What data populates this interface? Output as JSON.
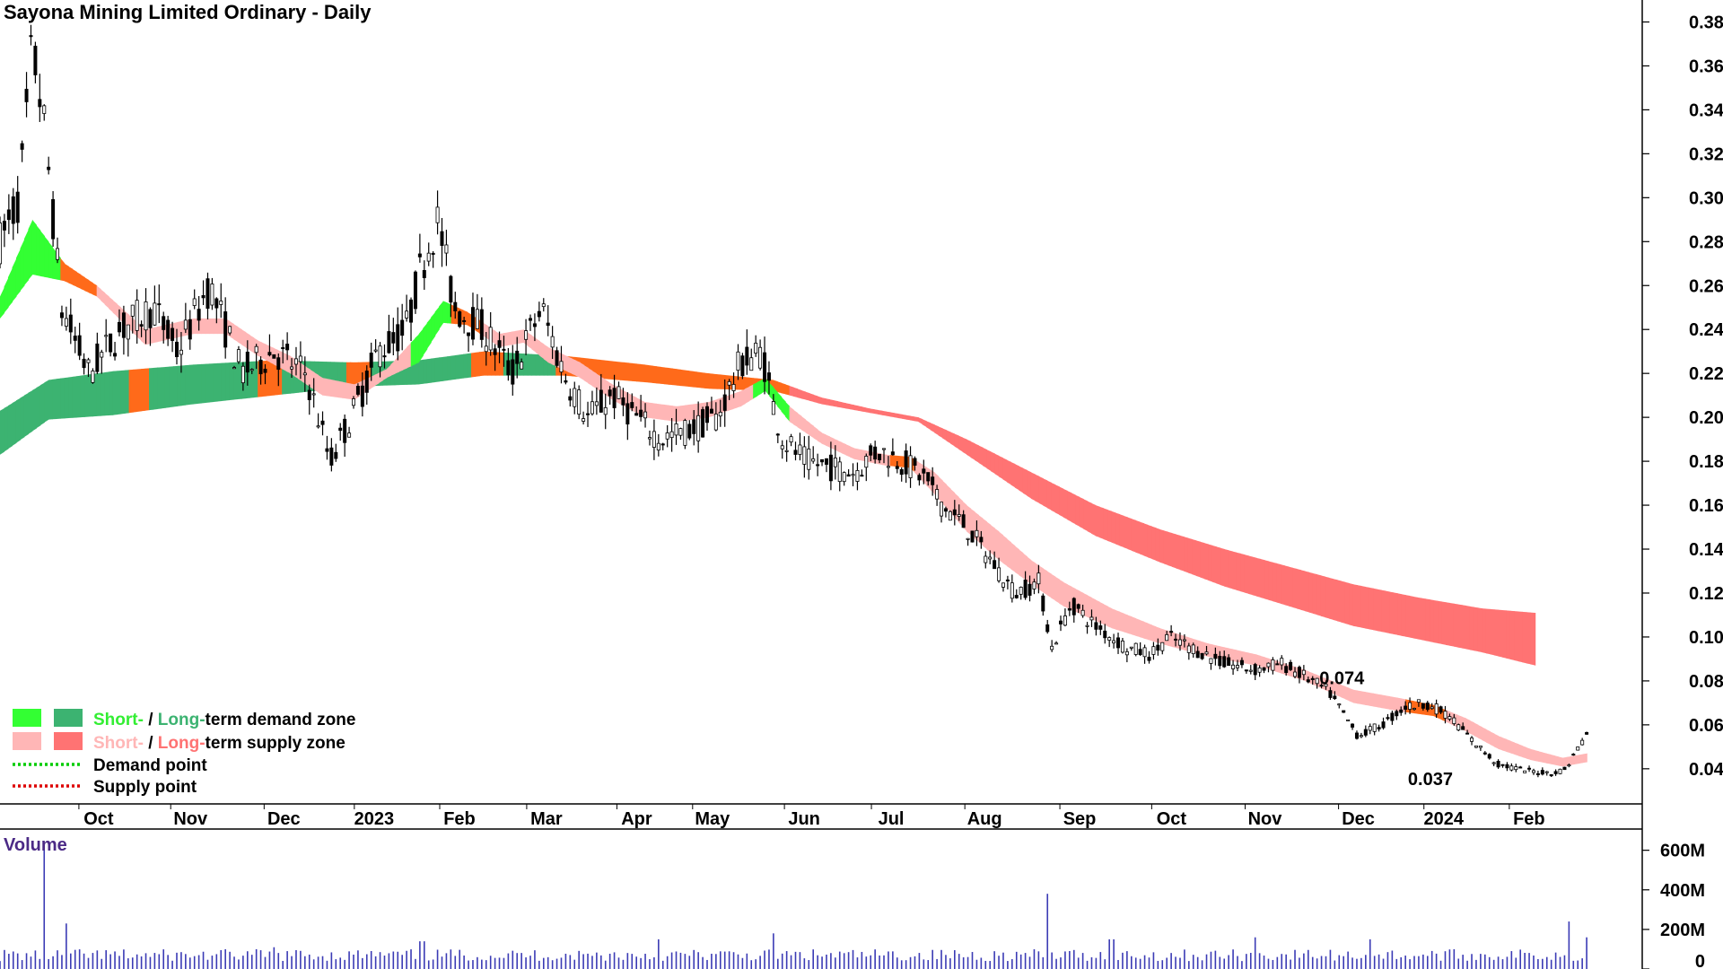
{
  "chart_data": {
    "type": "candlestick",
    "title": "Sayona Mining Limited Ordinary - Daily",
    "price_axis": {
      "ylim": [
        0.024,
        0.39
      ],
      "ticks": [
        "0.38",
        "0.36",
        "0.34",
        "0.32",
        "0.30",
        "0.28",
        "0.26",
        "0.24",
        "0.22",
        "0.20",
        "0.18",
        "0.16",
        "0.14",
        "0.12",
        "0.10",
        "0.08",
        "0.06",
        "0.04"
      ]
    },
    "x_labels": [
      {
        "label": "Oct",
        "t": 0.059
      },
      {
        "label": "Nov",
        "t": 0.116
      },
      {
        "label": "Dec",
        "t": 0.174
      },
      {
        "label": "2023",
        "t": 0.23
      },
      {
        "label": "Feb",
        "t": 0.283
      },
      {
        "label": "Mar",
        "t": 0.337
      },
      {
        "label": "Apr",
        "t": 0.393
      },
      {
        "label": "May",
        "t": 0.44
      },
      {
        "label": "Jun",
        "t": 0.497
      },
      {
        "label": "Jul",
        "t": 0.551
      },
      {
        "label": "Aug",
        "t": 0.609
      },
      {
        "label": "Sep",
        "t": 0.668
      },
      {
        "label": "Oct",
        "t": 0.725
      },
      {
        "label": "Nov",
        "t": 0.783
      },
      {
        "label": "Dec",
        "t": 0.841
      },
      {
        "label": "2024",
        "t": 0.894
      },
      {
        "label": "Feb",
        "t": 0.947
      }
    ],
    "price_path": [
      [
        0.0,
        0.28
      ],
      [
        0.012,
        0.3
      ],
      [
        0.02,
        0.37
      ],
      [
        0.028,
        0.33
      ],
      [
        0.038,
        0.25
      ],
      [
        0.055,
        0.22
      ],
      [
        0.075,
        0.24
      ],
      [
        0.095,
        0.25
      ],
      [
        0.11,
        0.23
      ],
      [
        0.13,
        0.26
      ],
      [
        0.15,
        0.22
      ],
      [
        0.17,
        0.23
      ],
      [
        0.19,
        0.22
      ],
      [
        0.205,
        0.18
      ],
      [
        0.218,
        0.2
      ],
      [
        0.235,
        0.23
      ],
      [
        0.252,
        0.24
      ],
      [
        0.262,
        0.27
      ],
      [
        0.272,
        0.29
      ],
      [
        0.282,
        0.25
      ],
      [
        0.3,
        0.24
      ],
      [
        0.318,
        0.22
      ],
      [
        0.336,
        0.25
      ],
      [
        0.35,
        0.22
      ],
      [
        0.365,
        0.2
      ],
      [
        0.38,
        0.21
      ],
      [
        0.395,
        0.2
      ],
      [
        0.41,
        0.19
      ],
      [
        0.43,
        0.195
      ],
      [
        0.445,
        0.2
      ],
      [
        0.46,
        0.225
      ],
      [
        0.473,
        0.23
      ],
      [
        0.48,
        0.205
      ],
      [
        0.486,
        0.19
      ],
      [
        0.5,
        0.18
      ],
      [
        0.53,
        0.175
      ],
      [
        0.545,
        0.185
      ],
      [
        0.56,
        0.18
      ],
      [
        0.575,
        0.172
      ],
      [
        0.585,
        0.16
      ],
      [
        0.6,
        0.15
      ],
      [
        0.615,
        0.135
      ],
      [
        0.63,
        0.12
      ],
      [
        0.645,
        0.125
      ],
      [
        0.653,
        0.095
      ],
      [
        0.665,
        0.115
      ],
      [
        0.68,
        0.105
      ],
      [
        0.7,
        0.095
      ],
      [
        0.715,
        0.092
      ],
      [
        0.725,
        0.1
      ],
      [
        0.74,
        0.095
      ],
      [
        0.76,
        0.088
      ],
      [
        0.78,
        0.085
      ],
      [
        0.795,
        0.088
      ],
      [
        0.81,
        0.082
      ],
      [
        0.825,
        0.075
      ],
      [
        0.843,
        0.055
      ],
      [
        0.858,
        0.06
      ],
      [
        0.872,
        0.068
      ],
      [
        0.885,
        0.07
      ],
      [
        0.9,
        0.064
      ],
      [
        0.915,
        0.052
      ],
      [
        0.93,
        0.042
      ],
      [
        0.948,
        0.039
      ],
      [
        0.965,
        0.038
      ],
      [
        0.972,
        0.04
      ],
      [
        0.98,
        0.05
      ],
      [
        0.985,
        0.056
      ]
    ],
    "short_term_band": {
      "upper": [
        [
          0.0,
          0.255
        ],
        [
          0.02,
          0.29
        ],
        [
          0.04,
          0.27
        ],
        [
          0.06,
          0.26
        ],
        [
          0.09,
          0.24
        ],
        [
          0.12,
          0.245
        ],
        [
          0.14,
          0.245
        ],
        [
          0.16,
          0.235
        ],
        [
          0.18,
          0.228
        ],
        [
          0.2,
          0.218
        ],
        [
          0.22,
          0.215
        ],
        [
          0.24,
          0.222
        ],
        [
          0.26,
          0.238
        ],
        [
          0.275,
          0.253
        ],
        [
          0.29,
          0.248
        ],
        [
          0.31,
          0.238
        ],
        [
          0.325,
          0.24
        ],
        [
          0.34,
          0.232
        ],
        [
          0.36,
          0.225
        ],
        [
          0.38,
          0.215
        ],
        [
          0.4,
          0.207
        ],
        [
          0.42,
          0.205
        ],
        [
          0.44,
          0.207
        ],
        [
          0.46,
          0.212
        ],
        [
          0.475,
          0.218
        ],
        [
          0.49,
          0.205
        ],
        [
          0.51,
          0.193
        ],
        [
          0.53,
          0.186
        ],
        [
          0.55,
          0.183
        ],
        [
          0.565,
          0.182
        ],
        [
          0.58,
          0.175
        ],
        [
          0.6,
          0.16
        ],
        [
          0.62,
          0.148
        ],
        [
          0.64,
          0.135
        ],
        [
          0.66,
          0.125
        ],
        [
          0.69,
          0.113
        ],
        [
          0.72,
          0.104
        ],
        [
          0.75,
          0.097
        ],
        [
          0.78,
          0.092
        ],
        [
          0.81,
          0.085
        ],
        [
          0.84,
          0.076
        ],
        [
          0.87,
          0.072
        ],
        [
          0.89,
          0.069
        ],
        [
          0.91,
          0.063
        ],
        [
          0.93,
          0.055
        ],
        [
          0.95,
          0.049
        ],
        [
          0.97,
          0.045
        ],
        [
          0.985,
          0.047
        ]
      ],
      "lower": [
        [
          0.0,
          0.245
        ],
        [
          0.02,
          0.265
        ],
        [
          0.04,
          0.262
        ],
        [
          0.06,
          0.255
        ],
        [
          0.09,
          0.233
        ],
        [
          0.12,
          0.238
        ],
        [
          0.14,
          0.238
        ],
        [
          0.16,
          0.228
        ],
        [
          0.18,
          0.22
        ],
        [
          0.2,
          0.21
        ],
        [
          0.22,
          0.208
        ],
        [
          0.24,
          0.218
        ],
        [
          0.26,
          0.225
        ],
        [
          0.275,
          0.243
        ],
        [
          0.29,
          0.242
        ],
        [
          0.31,
          0.232
        ],
        [
          0.325,
          0.234
        ],
        [
          0.34,
          0.225
        ],
        [
          0.36,
          0.218
        ],
        [
          0.38,
          0.208
        ],
        [
          0.4,
          0.2
        ],
        [
          0.42,
          0.198
        ],
        [
          0.44,
          0.2
        ],
        [
          0.46,
          0.205
        ],
        [
          0.475,
          0.212
        ],
        [
          0.49,
          0.198
        ],
        [
          0.51,
          0.188
        ],
        [
          0.53,
          0.181
        ],
        [
          0.55,
          0.178
        ],
        [
          0.565,
          0.177
        ],
        [
          0.58,
          0.165
        ],
        [
          0.6,
          0.148
        ],
        [
          0.62,
          0.135
        ],
        [
          0.64,
          0.124
        ],
        [
          0.66,
          0.114
        ],
        [
          0.69,
          0.104
        ],
        [
          0.72,
          0.097
        ],
        [
          0.75,
          0.091
        ],
        [
          0.78,
          0.087
        ],
        [
          0.81,
          0.08
        ],
        [
          0.84,
          0.07
        ],
        [
          0.87,
          0.066
        ],
        [
          0.89,
          0.064
        ],
        [
          0.91,
          0.057
        ],
        [
          0.93,
          0.049
        ],
        [
          0.95,
          0.044
        ],
        [
          0.97,
          0.041
        ],
        [
          0.985,
          0.043
        ]
      ]
    },
    "long_term_band": {
      "upper": [
        [
          0.0,
          0.203
        ],
        [
          0.03,
          0.217
        ],
        [
          0.07,
          0.221
        ],
        [
          0.12,
          0.224
        ],
        [
          0.17,
          0.226
        ],
        [
          0.22,
          0.225
        ],
        [
          0.26,
          0.226
        ],
        [
          0.3,
          0.23
        ],
        [
          0.35,
          0.228
        ],
        [
          0.4,
          0.224
        ],
        [
          0.44,
          0.22
        ],
        [
          0.48,
          0.217
        ],
        [
          0.51,
          0.209
        ],
        [
          0.54,
          0.204
        ],
        [
          0.57,
          0.2
        ],
        [
          0.6,
          0.19
        ],
        [
          0.64,
          0.175
        ],
        [
          0.68,
          0.16
        ],
        [
          0.72,
          0.149
        ],
        [
          0.76,
          0.14
        ],
        [
          0.8,
          0.132
        ],
        [
          0.84,
          0.124
        ],
        [
          0.88,
          0.118
        ],
        [
          0.92,
          0.113
        ],
        [
          0.953,
          0.111
        ]
      ],
      "lower": [
        [
          0.0,
          0.183
        ],
        [
          0.03,
          0.199
        ],
        [
          0.07,
          0.201
        ],
        [
          0.12,
          0.206
        ],
        [
          0.17,
          0.21
        ],
        [
          0.22,
          0.214
        ],
        [
          0.26,
          0.215
        ],
        [
          0.3,
          0.219
        ],
        [
          0.35,
          0.219
        ],
        [
          0.4,
          0.216
        ],
        [
          0.44,
          0.213
        ],
        [
          0.48,
          0.212
        ],
        [
          0.51,
          0.206
        ],
        [
          0.54,
          0.202
        ],
        [
          0.57,
          0.198
        ],
        [
          0.6,
          0.183
        ],
        [
          0.64,
          0.163
        ],
        [
          0.68,
          0.146
        ],
        [
          0.72,
          0.134
        ],
        [
          0.76,
          0.123
        ],
        [
          0.8,
          0.114
        ],
        [
          0.84,
          0.105
        ],
        [
          0.88,
          0.099
        ],
        [
          0.92,
          0.093
        ],
        [
          0.953,
          0.087
        ]
      ]
    },
    "zone_colors": {
      "short_demand": "#33ff33",
      "long_demand": "#3cb371",
      "short_supply": "#ffb6b6",
      "long_supply": "#ff7373",
      "overlap_supply": "#ff6a1a"
    },
    "annotations": [
      {
        "text": "0.074",
        "t": 0.833,
        "price": 0.0785
      },
      {
        "text": "0.037",
        "t": 0.888,
        "price": 0.0325
      }
    ],
    "legend": [
      {
        "prefix": "Short-",
        "mid": " / ",
        "main": "Long-",
        "suffix": "term demand zone",
        "swatch1": "#33ff33",
        "swatch2": "#3cb371",
        "prefix_color": "#33ee33",
        "main_color": "#3cb371"
      },
      {
        "prefix": "Short-",
        "mid": " / ",
        "main": "Long-",
        "suffix": "term supply zone",
        "swatch1": "#ffb6b6",
        "swatch2": "#ff7373",
        "prefix_color": "#ffb6b6",
        "main_color": "#ff7373"
      },
      {
        "label": "Demand point",
        "line_color": "#00cc00"
      },
      {
        "label": "Supply point",
        "line_color": "#dd0000"
      }
    ],
    "volume": {
      "title": "Volume",
      "ticks": [
        "600M",
        "400M",
        "200M",
        "0"
      ],
      "ylim": [
        0,
        680
      ],
      "unit": "M",
      "bar_color": "#3b3bb5",
      "spikes": [
        [
          0.028,
          600
        ],
        [
          0.04,
          230
        ],
        [
          0.17,
          110
        ],
        [
          0.262,
          140
        ],
        [
          0.41,
          150
        ],
        [
          0.48,
          180
        ],
        [
          0.65,
          380
        ],
        [
          0.69,
          150
        ],
        [
          0.78,
          160
        ],
        [
          0.85,
          150
        ],
        [
          0.975,
          240
        ],
        [
          0.985,
          160
        ]
      ]
    }
  }
}
